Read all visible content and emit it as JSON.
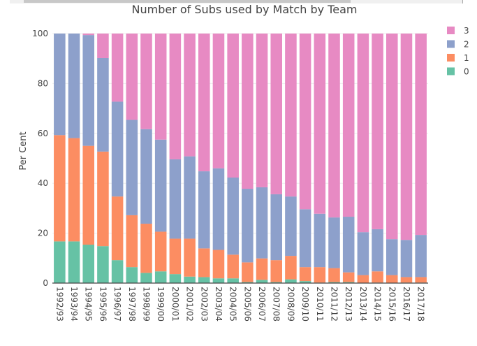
{
  "chart_data": {
    "type": "bar",
    "stacked": true,
    "title": "Number of Subs used by Match by Team",
    "xlabel": "",
    "ylabel": "Per Cent",
    "ylim": [
      0,
      100
    ],
    "yticks": [
      0,
      20,
      40,
      60,
      80,
      100
    ],
    "grid": true,
    "legend_position": "top-right",
    "categories": [
      "1992/93",
      "1993/94",
      "1994/95",
      "1995/96",
      "1996/97",
      "1997/98",
      "1998/99",
      "1999/00",
      "2000/01",
      "2001/02",
      "2002/03",
      "2003/04",
      "2004/05",
      "2005/06",
      "2006/07",
      "2007/08",
      "2008/09",
      "2009/10",
      "2010/11",
      "2011/12",
      "2012/13",
      "2013/14",
      "2014/15",
      "2015/16",
      "2016/17",
      "2017/18"
    ],
    "series": [
      {
        "name": "0",
        "color": "#66c2a5",
        "values": [
          16.7,
          16.7,
          15.4,
          14.8,
          9.2,
          6.4,
          4.1,
          4.7,
          3.6,
          2.6,
          2.4,
          1.9,
          1.9,
          0.4,
          1.3,
          0.4,
          1.5,
          0.8,
          0.2,
          0.4,
          0.4,
          0,
          0.2,
          0,
          0.2,
          0.2
        ]
      },
      {
        "name": "1",
        "color": "#fc8d62",
        "values": [
          42.6,
          41.4,
          39.6,
          37.9,
          25.5,
          20.8,
          19.7,
          15.9,
          14.2,
          15.2,
          11.5,
          11.4,
          9.5,
          7.9,
          8.6,
          8.8,
          9.4,
          5.6,
          6.2,
          5.6,
          3.9,
          3.2,
          4.5,
          3.2,
          2.2,
          2.2
        ]
      },
      {
        "name": "2",
        "color": "#8da0cb",
        "values": [
          40.7,
          41.9,
          44.4,
          37.5,
          38.0,
          38.2,
          37.9,
          36.9,
          31.8,
          33.0,
          30.9,
          32.7,
          30.9,
          29.5,
          28.5,
          26.4,
          23.8,
          23.2,
          21.4,
          20.3,
          22.3,
          17.2,
          16.9,
          14.4,
          14.9,
          16.9
        ]
      },
      {
        "name": "3",
        "color": "#e78ac3",
        "values": [
          0,
          0,
          0.6,
          9.8,
          27.3,
          34.6,
          38.3,
          42.5,
          50.4,
          49.2,
          55.2,
          54.0,
          57.7,
          62.2,
          61.6,
          64.4,
          65.3,
          70.4,
          72.2,
          73.7,
          73.4,
          79.6,
          78.4,
          82.4,
          82.7,
          80.7
        ]
      }
    ]
  }
}
